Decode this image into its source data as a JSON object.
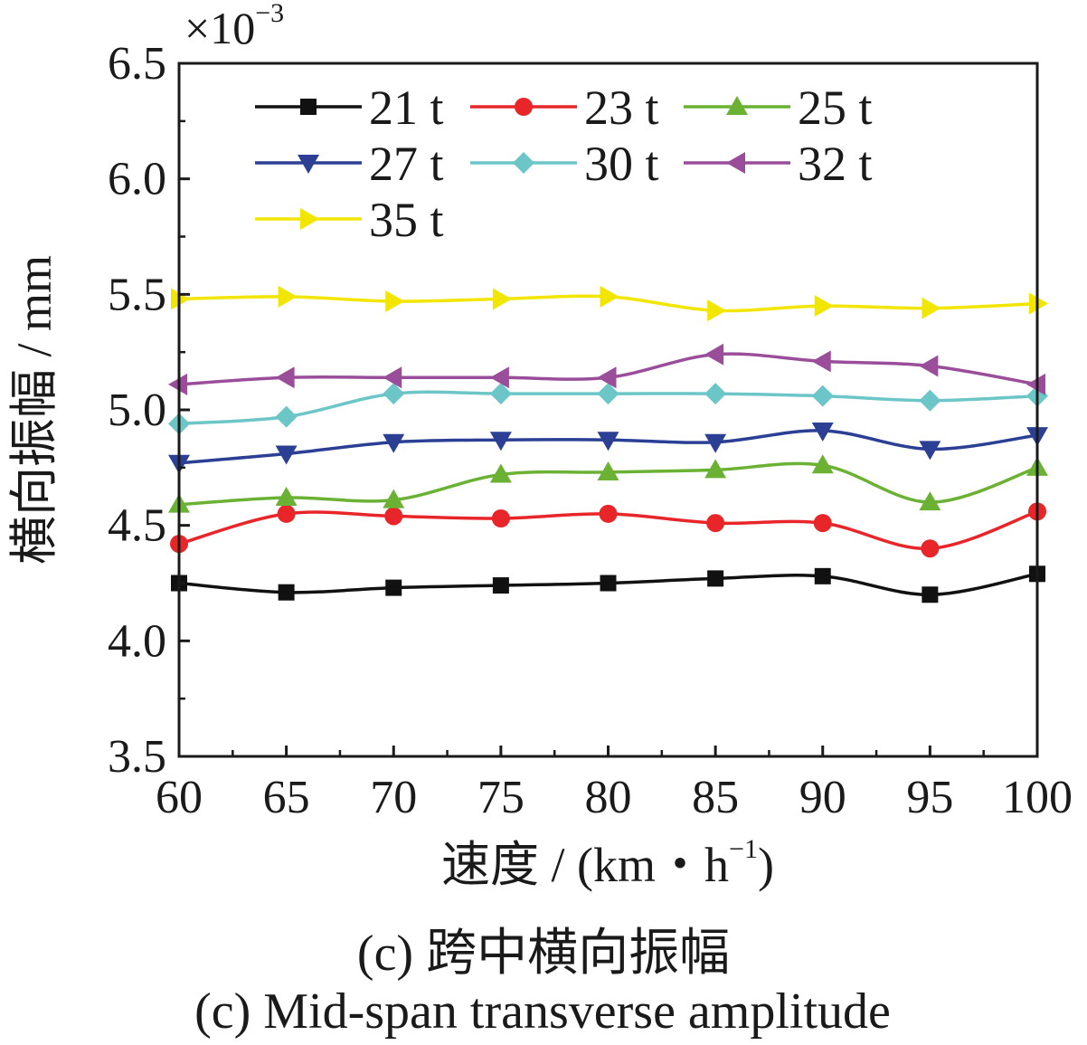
{
  "chart_data": {
    "type": "line",
    "x": [
      60,
      65,
      70,
      75,
      80,
      85,
      90,
      95,
      100
    ],
    "xlim": [
      60,
      100
    ],
    "ylim": [
      3.5,
      6.5
    ],
    "xticks": [
      "60",
      "65",
      "70",
      "75",
      "80",
      "85",
      "90",
      "95",
      "100"
    ],
    "yticks": [
      "3.5",
      "4.0",
      "4.5",
      "5.0",
      "5.5",
      "6.0",
      "6.5"
    ],
    "y_multiplier": "×10",
    "y_multiplier_exp": "−3",
    "xlabel": "速度 / (km・h",
    "xlabel_exp": "−1",
    "xlabel_end": ")",
    "ylabel": "横向振幅 / mm",
    "legend_position": "top-left",
    "grid": false,
    "series": [
      {
        "name": "21 t",
        "color": "#111111",
        "marker": "square",
        "values": [
          4.25,
          4.21,
          4.23,
          4.24,
          4.25,
          4.27,
          4.28,
          4.2,
          4.29
        ]
      },
      {
        "name": "23 t",
        "color": "#e8262a",
        "marker": "circle",
        "values": [
          4.42,
          4.55,
          4.54,
          4.53,
          4.55,
          4.51,
          4.51,
          4.4,
          4.56
        ]
      },
      {
        "name": "25 t",
        "color": "#6bb234",
        "marker": "triangle-up",
        "values": [
          4.59,
          4.62,
          4.61,
          4.72,
          4.73,
          4.74,
          4.76,
          4.6,
          4.75
        ]
      },
      {
        "name": "27 t",
        "color": "#2b3f95",
        "marker": "triangle-down",
        "values": [
          4.77,
          4.81,
          4.86,
          4.87,
          4.87,
          4.86,
          4.91,
          4.83,
          4.89
        ]
      },
      {
        "name": "30 t",
        "color": "#6cc6c8",
        "marker": "diamond",
        "values": [
          4.94,
          4.97,
          5.07,
          5.07,
          5.07,
          5.07,
          5.06,
          5.04,
          5.06
        ]
      },
      {
        "name": "32 t",
        "color": "#9a4e9a",
        "marker": "triangle-left",
        "values": [
          5.11,
          5.14,
          5.14,
          5.14,
          5.14,
          5.24,
          5.21,
          5.19,
          5.11
        ]
      },
      {
        "name": "35 t",
        "color": "#f2e600",
        "marker": "triangle-right",
        "values": [
          5.48,
          5.49,
          5.47,
          5.48,
          5.49,
          5.43,
          5.45,
          5.44,
          5.46
        ]
      }
    ]
  },
  "captions": {
    "chinese": "(c)  跨中横向振幅",
    "english": "(c)  Mid-span transverse amplitude"
  }
}
